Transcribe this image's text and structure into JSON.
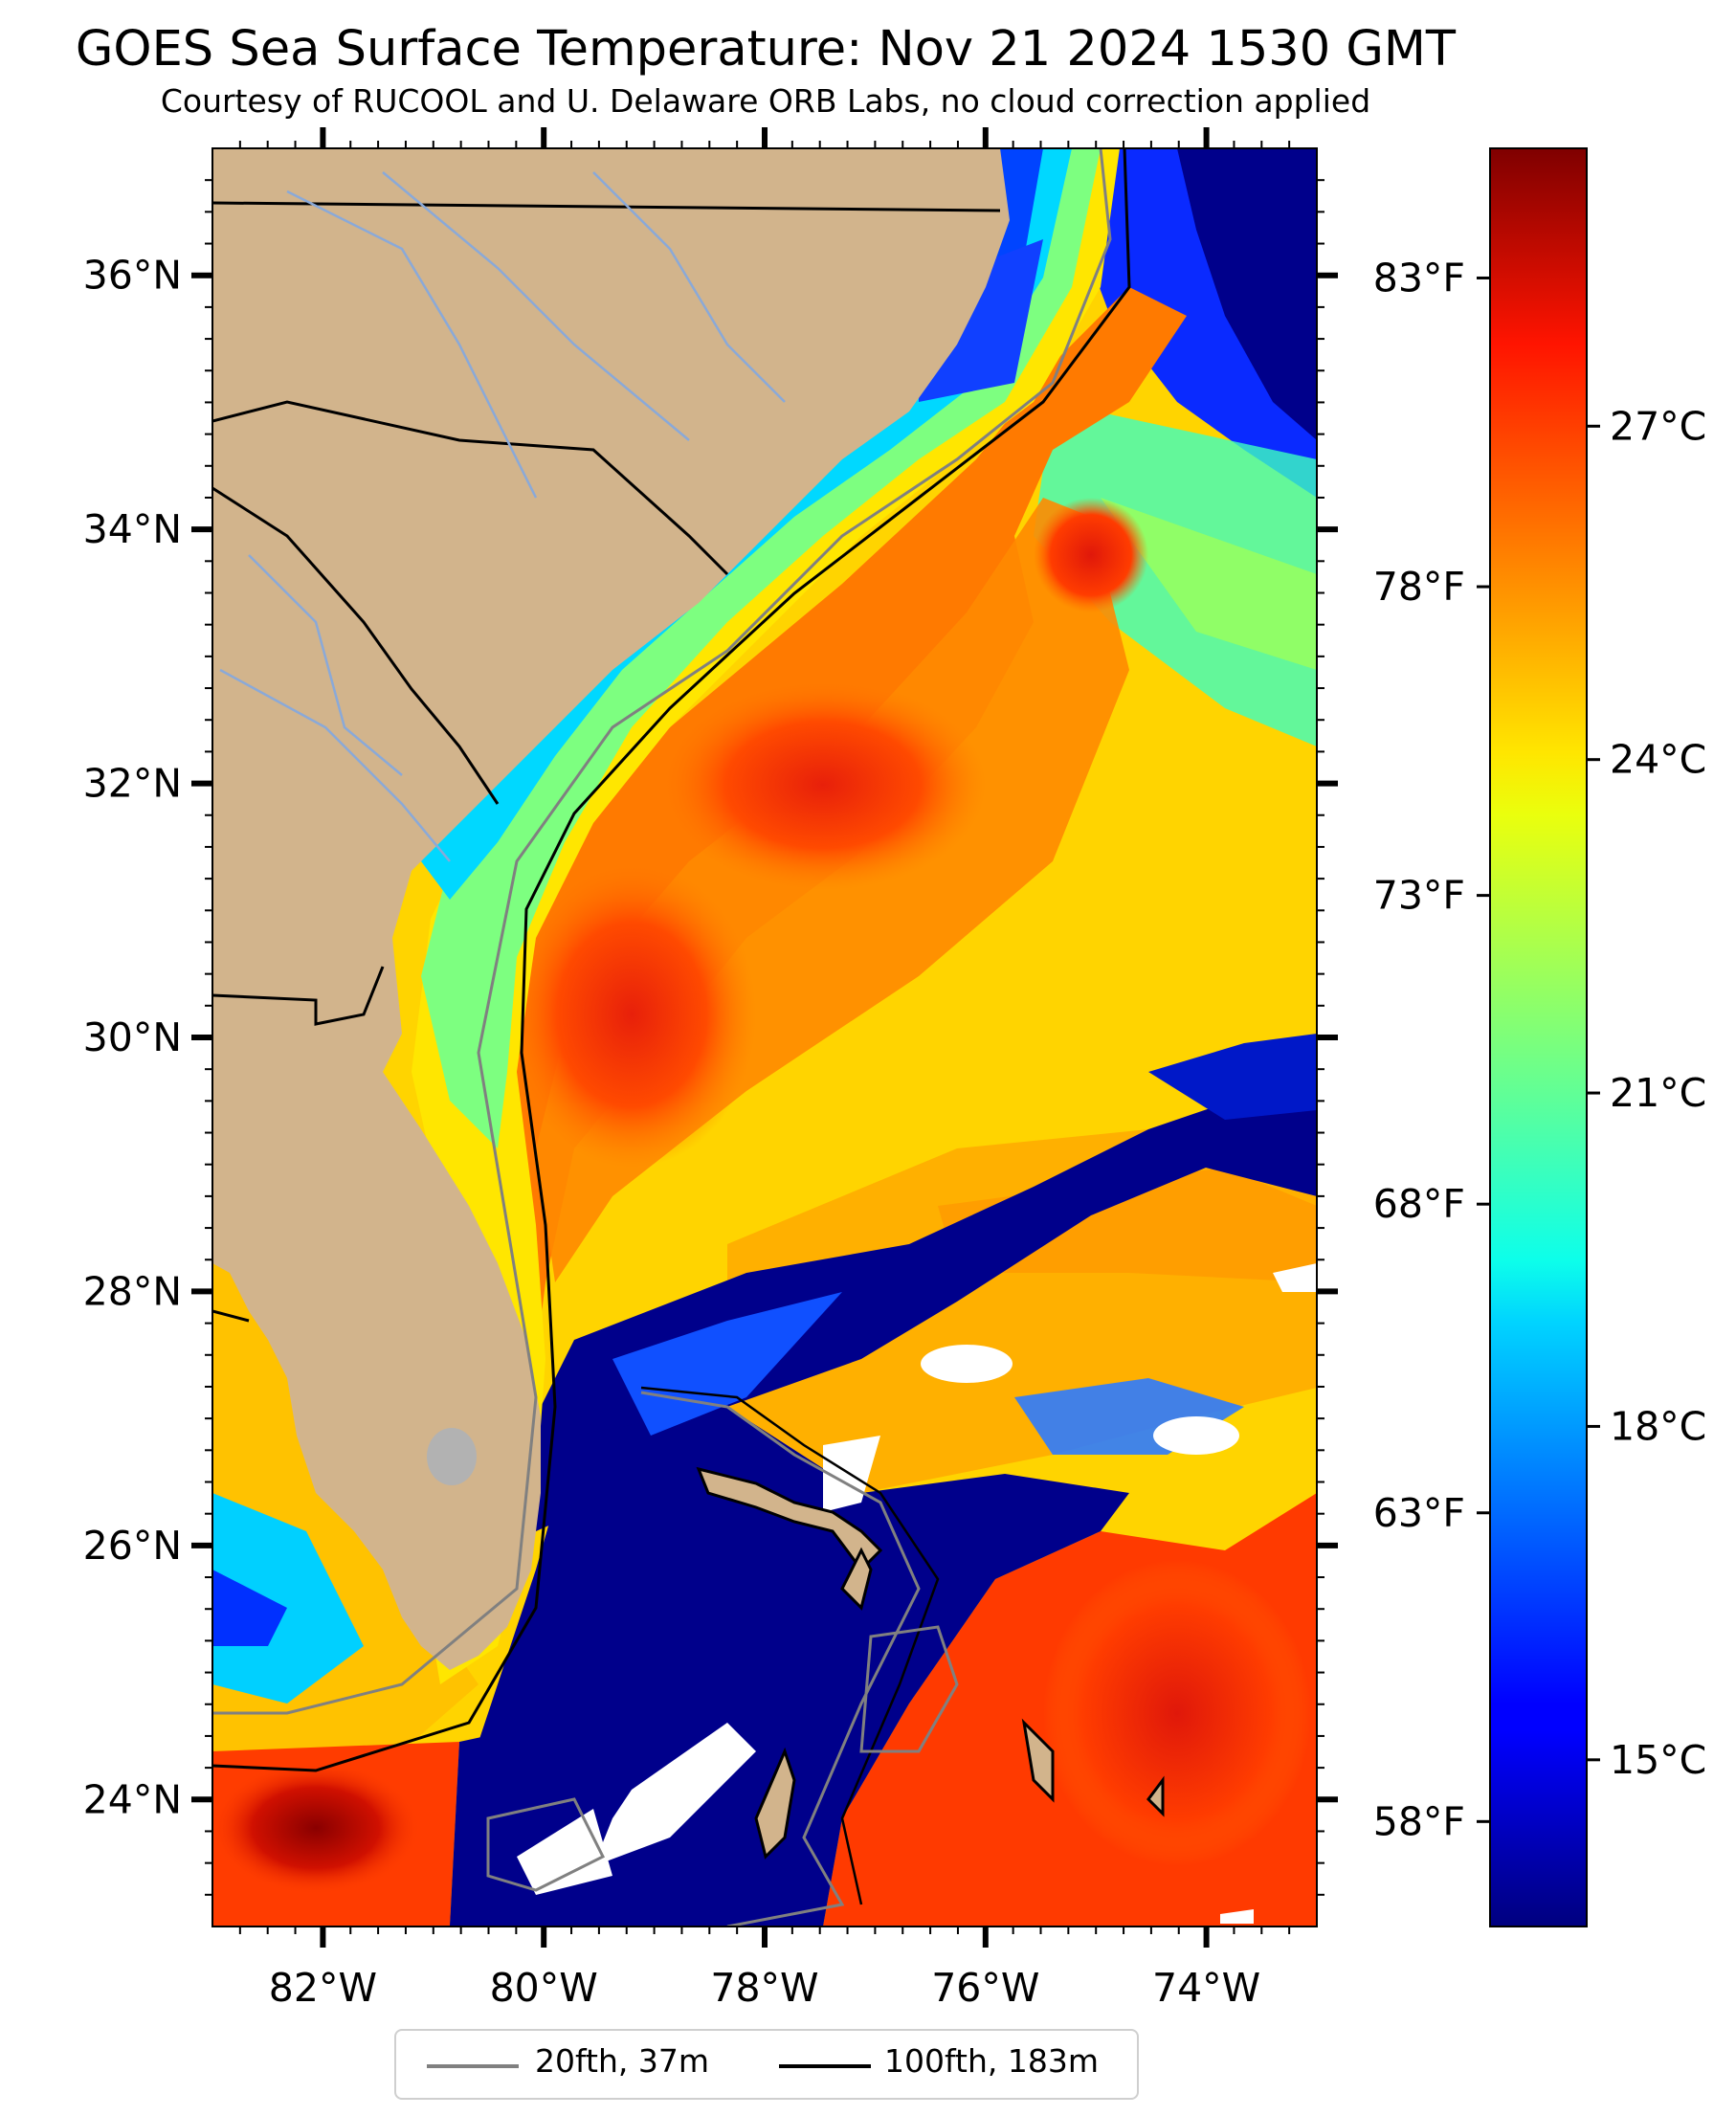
{
  "title": "GOES Sea Surface Temperature: Nov 21 2024 1530 GMT",
  "subtitle": "Courtesy of RUCOOL and U. Delaware ORB Labs, no cloud correction applied",
  "map": {
    "lon_range": [
      -83,
      -73
    ],
    "lat_range": [
      23,
      37
    ],
    "lat_ticks": [
      {
        "lat": 36,
        "label": "36°N"
      },
      {
        "lat": 34,
        "label": "34°N"
      },
      {
        "lat": 32,
        "label": "32°N"
      },
      {
        "lat": 30,
        "label": "30°N"
      },
      {
        "lat": 28,
        "label": "28°N"
      },
      {
        "lat": 26,
        "label": "26°N"
      },
      {
        "lat": 24,
        "label": "24°N"
      }
    ],
    "lon_ticks": [
      {
        "lon": -82,
        "label": "82°W"
      },
      {
        "lon": -80,
        "label": "80°W"
      },
      {
        "lon": -78,
        "label": "78°W"
      },
      {
        "lon": -76,
        "label": "76°W"
      },
      {
        "lon": -74,
        "label": "74°W"
      }
    ],
    "colors": {
      "land": "#d2b48c",
      "ocean_cold": "#00008b",
      "ocean_warm": "#ff3300",
      "cloud_gap": "#ffffff"
    }
  },
  "colorbar": {
    "range_c": [
      13.5,
      29.5
    ],
    "celsius_ticks": [
      {
        "value": 27,
        "label": "27°C"
      },
      {
        "value": 24,
        "label": "24°C"
      },
      {
        "value": 21,
        "label": "21°C"
      },
      {
        "value": 18,
        "label": "18°C"
      },
      {
        "value": 15,
        "label": "15°C"
      }
    ],
    "fahrenheit_ticks": [
      {
        "value": 83,
        "label": "83°F"
      },
      {
        "value": 78,
        "label": "78°F"
      },
      {
        "value": 73,
        "label": "73°F"
      },
      {
        "value": 68,
        "label": "68°F"
      },
      {
        "value": 63,
        "label": "63°F"
      },
      {
        "value": 58,
        "label": "58°F"
      }
    ],
    "colormap": "jet"
  },
  "legend": {
    "items": [
      {
        "label": "20fth, 37m",
        "color": "#808080"
      },
      {
        "label": "100fth, 183m",
        "color": "#000000"
      }
    ]
  }
}
